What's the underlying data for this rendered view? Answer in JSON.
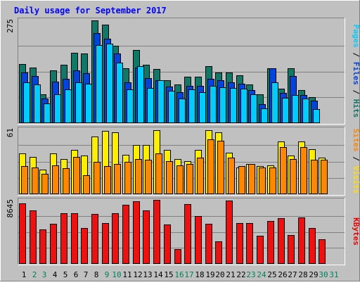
{
  "chart_data": {
    "type": "bar",
    "title": "Daily usage for September 2017",
    "categories": [
      "1",
      "2",
      "3",
      "4",
      "5",
      "6",
      "7",
      "8",
      "9",
      "10",
      "11",
      "12",
      "13",
      "14",
      "15",
      "16",
      "17",
      "18",
      "19",
      "20",
      "21",
      "22",
      "23",
      "24",
      "25",
      "26",
      "27",
      "28",
      "29",
      "30",
      "31"
    ],
    "weekend_days": [
      "2",
      "3",
      "9",
      "10",
      "16",
      "17",
      "23",
      "24",
      "30",
      "31"
    ],
    "panels": [
      {
        "name": "hits-files-pages",
        "ylim": [
          0,
          275
        ],
        "ymax_label": "275",
        "label_parts": [
          {
            "text": "Pages",
            "color": "#00ccff"
          },
          {
            "text": " / ",
            "color": "#000000"
          },
          {
            "text": "Files",
            "color": "#0044dd"
          },
          {
            "text": " / ",
            "color": "#000000"
          },
          {
            "text": "Hits",
            "color": "#117766"
          }
        ],
        "series": [
          {
            "name": "Hits",
            "color": "#117766",
            "values": [
              158,
              147,
              77,
              140,
              155,
              188,
              185,
              274,
              262,
              205,
              146,
              195,
              155,
              144,
              115,
              102,
              123,
              123,
              152,
              135,
              134,
              127,
              102,
              76,
              145,
              92,
              145,
              88,
              69,
              0
            ]
          },
          {
            "name": "Files",
            "color": "#0044dd",
            "values": [
              135,
              125,
              65,
              110,
              118,
              140,
              132,
              240,
              225,
              185,
              108,
              148,
              120,
              115,
              97,
              82,
              100,
              100,
              118,
              115,
              108,
              104,
              88,
              50,
              145,
              80,
              125,
              75,
              60,
              0
            ]
          },
          {
            "name": "Pages",
            "color": "#00ccff",
            "values": [
              108,
              103,
              53,
              77,
              90,
              108,
              105,
              208,
              212,
              160,
              90,
              152,
              93,
              115,
              86,
              65,
              90,
              82,
              100,
              95,
              94,
              92,
              76,
              40,
              108,
              67,
              75,
              66,
              38,
              0
            ]
          }
        ]
      },
      {
        "name": "visits-sites",
        "ylim": [
          0,
          61
        ],
        "ymax_label": "61",
        "label_parts": [
          {
            "text": "Sites",
            "color": "#ff8800"
          },
          {
            "text": " / ",
            "color": "#000000"
          },
          {
            "text": "Visits",
            "color": "#ffdd00"
          }
        ],
        "series": [
          {
            "name": "Visits",
            "color": "#ffee00",
            "values": [
              38,
              35,
              23,
              38,
              33,
              41,
              36,
              54,
              59,
              58,
              37,
              46,
              46,
              60,
              41,
              33,
              31,
              41,
              60,
              58,
              39,
              25,
              28,
              26,
              27,
              49,
              36,
              49,
              42,
              34
            ]
          },
          {
            "name": "Sites",
            "color": "#ff8800",
            "values": [
              26,
              25,
              19,
              27,
              24,
              35,
              18,
              30,
              26,
              28,
              30,
              33,
              32,
              38,
              31,
              27,
              28,
              34,
              51,
              50,
              34,
              26,
              28,
              25,
              25,
              44,
              33,
              44,
              32,
              32
            ]
          }
        ]
      },
      {
        "name": "kbytes",
        "ylim": [
          0,
          8645
        ],
        "ymax_label": "8645",
        "label_parts": [
          {
            "text": "KBytes",
            "color": "#ee0000"
          }
        ],
        "series": [
          {
            "name": "KBytes",
            "color": "#ee1111",
            "values": [
              8163,
              7193,
              4629,
              5406,
              6868,
              6817,
              4810,
              6711,
              5519,
              6829,
              7982,
              8416,
              7258,
              8645,
              5366,
              2004,
              8104,
              6443,
              5401,
              3012,
              8519,
              5481,
              5481,
              3818,
              5748,
              6169,
              3936,
              6233,
              4872,
              3318
            ]
          }
        ]
      }
    ]
  }
}
